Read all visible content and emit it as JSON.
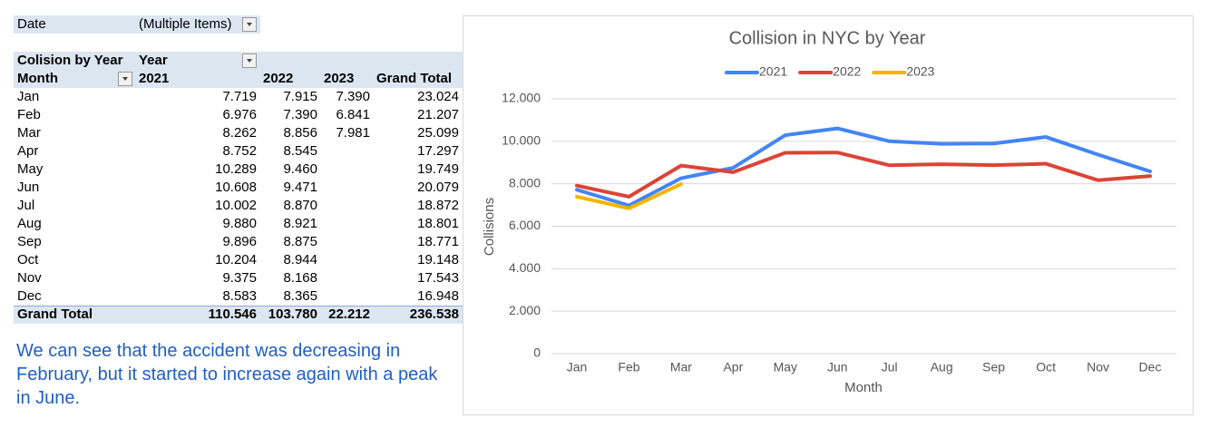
{
  "filter": {
    "label": "Date",
    "value": "(Multiple Items)"
  },
  "table": {
    "corner": "Colision by Year",
    "column_field": "Year",
    "row_field": "Month",
    "columns": [
      "2021",
      "2022",
      "2023",
      "Grand Total"
    ],
    "rows": [
      [
        "Jan",
        "7.719",
        "7.915",
        "7.390",
        "23.024"
      ],
      [
        "Feb",
        "6.976",
        "7.390",
        "6.841",
        "21.207"
      ],
      [
        "Mar",
        "8.262",
        "8.856",
        "7.981",
        "25.099"
      ],
      [
        "Apr",
        "8.752",
        "8.545",
        null,
        "17.297"
      ],
      [
        "May",
        "10.289",
        "9.460",
        null,
        "19.749"
      ],
      [
        "Jun",
        "10.608",
        "9.471",
        null,
        "20.079"
      ],
      [
        "Jul",
        "10.002",
        "8.870",
        null,
        "18.872"
      ],
      [
        "Aug",
        "9.880",
        "8.921",
        null,
        "18.801"
      ],
      [
        "Sep",
        "9.896",
        "8.875",
        null,
        "18.771"
      ],
      [
        "Oct",
        "10.204",
        "8.944",
        null,
        "19.148"
      ],
      [
        "Nov",
        "9.375",
        "8.168",
        null,
        "17.543"
      ],
      [
        "Dec",
        "8.583",
        "8.365",
        null,
        "16.948"
      ]
    ],
    "total": [
      "Grand Total",
      "110.546",
      "103.780",
      "22.212",
      "236.538"
    ]
  },
  "note": "We can see that the accident was decreasing in February, but it started to increase again with a peak in June.",
  "chart_data": {
    "type": "line",
    "title": "Collision in NYC by Year",
    "x_label": "Month",
    "y_label": "Collisions",
    "categories": [
      "Jan",
      "Feb",
      "Mar",
      "Apr",
      "May",
      "Jun",
      "Jul",
      "Aug",
      "Sep",
      "Oct",
      "Nov",
      "Dec"
    ],
    "series": [
      {
        "name": "2021",
        "color": "#4285f4",
        "values": [
          7719,
          6976,
          8262,
          8752,
          10289,
          10608,
          10002,
          9880,
          9896,
          10204,
          9375,
          8583
        ]
      },
      {
        "name": "2022",
        "color": "#db4437",
        "values": [
          7915,
          7390,
          8856,
          8545,
          9460,
          9471,
          8870,
          8921,
          8875,
          8944,
          8168,
          8365
        ]
      },
      {
        "name": "2023",
        "color": "#f4b400",
        "values": [
          7390,
          6841,
          7981,
          null,
          null,
          null,
          null,
          null,
          null,
          null,
          null,
          null
        ]
      }
    ],
    "ylim": [
      0,
      12000
    ],
    "yticks": [
      0,
      {
        "value": 2000,
        "label": "2.000"
      },
      {
        "value": 4000,
        "label": "4.000"
      },
      {
        "value": 6000,
        "label": "6.000"
      },
      {
        "value": 8000,
        "label": "8.000"
      },
      {
        "value": 10000,
        "label": "10.000"
      },
      {
        "value": 12000,
        "label": "12.000"
      }
    ],
    "grid": true,
    "legend": "top"
  }
}
